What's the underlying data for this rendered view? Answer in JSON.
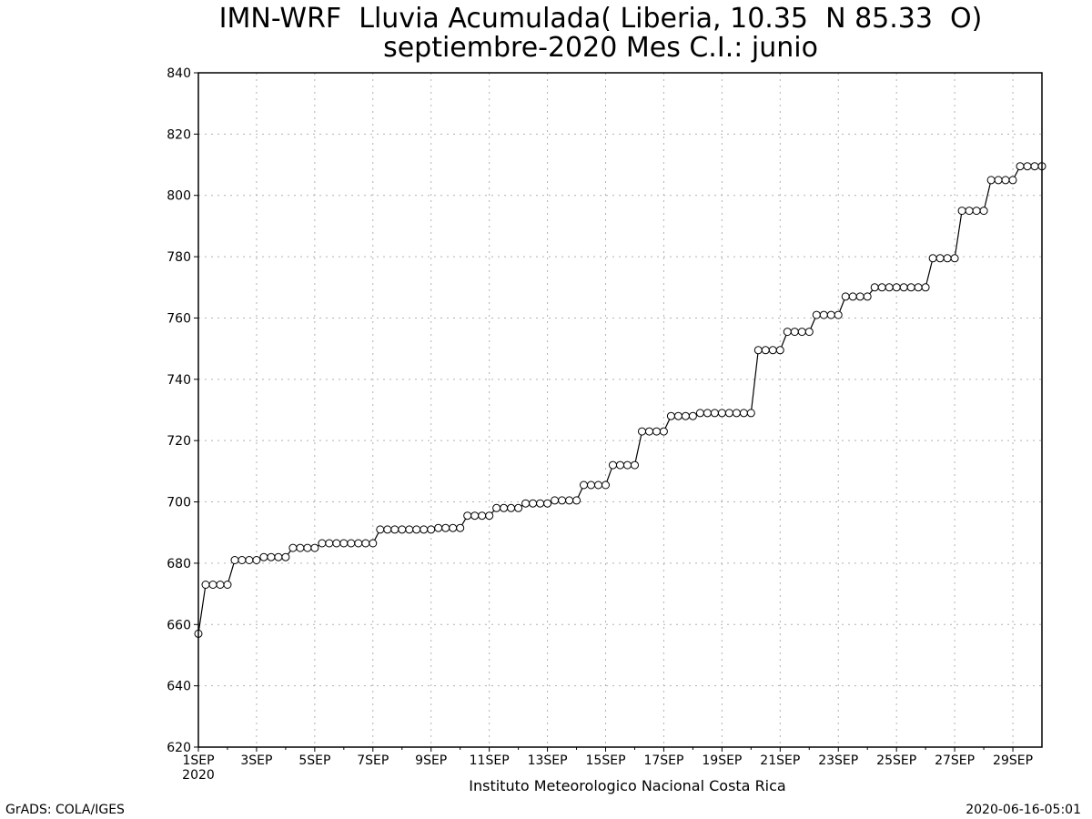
{
  "header": {
    "title_line1": "IMN-WRF  Lluvia Acumulada( Liberia, 10.35  N 85.33  O)",
    "title_line2": "septiembre-2020 Mes C.I.: junio"
  },
  "footer": {
    "credit": "GrADS: COLA/IGES",
    "timestamp": "2020-06-16-05:01"
  },
  "colors": {
    "line": "#000000",
    "marker_fill": "#ffffff",
    "grid": "#b0b0b0"
  },
  "chart_data": {
    "type": "line",
    "title": "IMN-WRF  Lluvia Acumulada( Liberia, 10.35  N 85.33  O)",
    "subtitle": "septiembre-2020 Mes C.I.: junio",
    "xlabel": "Instituto Meteorologico Nacional Costa Rica",
    "ylabel": "",
    "x_range_days": [
      1,
      30
    ],
    "x_tick_labels": [
      "1SEP",
      "3SEP",
      "5SEP",
      "7SEP",
      "9SEP",
      "11SEP",
      "13SEP",
      "15SEP",
      "17SEP",
      "19SEP",
      "21SEP",
      "23SEP",
      "25SEP",
      "27SEP",
      "29SEP"
    ],
    "x_tick_days": [
      1,
      3,
      5,
      7,
      9,
      11,
      13,
      15,
      17,
      19,
      21,
      23,
      25,
      27,
      29
    ],
    "x_year_label": "2020",
    "x_step_days": 0.25,
    "ylim": [
      620,
      840
    ],
    "y_ticks": [
      620,
      640,
      660,
      680,
      700,
      720,
      740,
      760,
      780,
      800,
      820,
      840
    ],
    "grid": true,
    "marker": "open-circle",
    "series": [
      {
        "values": [
          657,
          673,
          673,
          673,
          673,
          681,
          681,
          681,
          681,
          682,
          682,
          682,
          682,
          685,
          685,
          685,
          685,
          686.5,
          686.5,
          686.5,
          686.5,
          686.5,
          686.5,
          686.5,
          686.5,
          691,
          691,
          691,
          691,
          691,
          691,
          691,
          691,
          691.5,
          691.5,
          691.5,
          691.5,
          695.5,
          695.5,
          695.5,
          695.5,
          698,
          698,
          698,
          698,
          699.5,
          699.5,
          699.5,
          699.5,
          700.5,
          700.5,
          700.5,
          700.5,
          705.5,
          705.5,
          705.5,
          705.5,
          712,
          712,
          712,
          712,
          723,
          723,
          723,
          723,
          728,
          728,
          728,
          728,
          729,
          729,
          729,
          729,
          729,
          729,
          729,
          729,
          749.5,
          749.5,
          749.5,
          749.5,
          755.5,
          755.5,
          755.5,
          755.5,
          761,
          761,
          761,
          761,
          767,
          767,
          767,
          767,
          770,
          770,
          770,
          770,
          770,
          770,
          770,
          770,
          779.5,
          779.5,
          779.5,
          779.5,
          795,
          795,
          795,
          795,
          805,
          805,
          805,
          805,
          809.5,
          809.5,
          809.5,
          809.5
        ]
      }
    ]
  }
}
